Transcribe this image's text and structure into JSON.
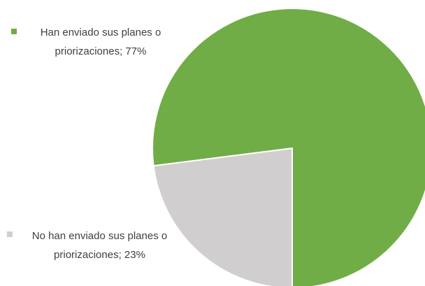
{
  "chart_data": {
    "type": "pie",
    "labels": [
      "Han enviado sus planes o priorizaciones; 77%",
      "No han enviado sus planes o priorizaciones; 23%"
    ],
    "values": [
      77,
      23
    ],
    "colors": [
      "#70ad47",
      "#d0cece"
    ]
  }
}
